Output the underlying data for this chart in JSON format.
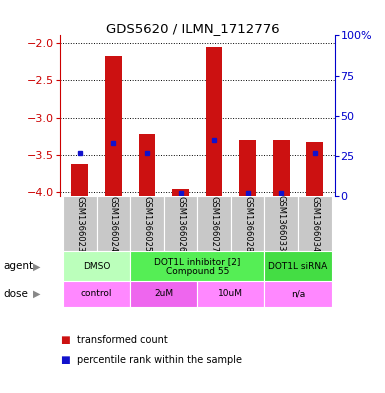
{
  "title": "GDS5620 / ILMN_1712776",
  "samples": [
    "GSM1366023",
    "GSM1366024",
    "GSM1366025",
    "GSM1366026",
    "GSM1366027",
    "GSM1366028",
    "GSM1366033",
    "GSM1366034"
  ],
  "red_values": [
    -3.62,
    -2.18,
    -3.22,
    -3.95,
    -2.06,
    -3.3,
    -3.3,
    -3.32
  ],
  "blue_pct": [
    27,
    33,
    27,
    2,
    35,
    2,
    2,
    27
  ],
  "ylim_left": [
    -4.05,
    -1.9
  ],
  "ylim_right": [
    0,
    100
  ],
  "yticks_left": [
    -4.0,
    -3.5,
    -3.0,
    -2.5,
    -2.0
  ],
  "yticks_right": [
    0,
    25,
    50,
    75,
    100
  ],
  "agent_groups": [
    {
      "label": "DMSO",
      "cols": [
        0,
        1
      ],
      "color": "#bbffbb"
    },
    {
      "label": "DOT1L inhibitor [2]\nCompound 55",
      "cols": [
        2,
        3,
        4,
        5
      ],
      "color": "#55ee55"
    },
    {
      "label": "DOT1L siRNA",
      "cols": [
        6,
        7
      ],
      "color": "#44dd44"
    }
  ],
  "dose_spans": [
    {
      "cols": [
        0,
        1
      ],
      "label": "control",
      "color": "#ff88ff"
    },
    {
      "cols": [
        2,
        3
      ],
      "label": "2uM",
      "color": "#ee66ee"
    },
    {
      "cols": [
        4,
        5
      ],
      "label": "10uM",
      "color": "#ff88ff"
    },
    {
      "cols": [
        6,
        7
      ],
      "label": "n/a",
      "color": "#ff88ff"
    }
  ],
  "bar_color": "#cc1111",
  "dot_color": "#1111cc",
  "bg_color": "#ffffff",
  "tick_color_left": "#cc0000",
  "tick_color_right": "#0000cc",
  "sample_bg": "#c8c8c8",
  "bar_width": 0.5
}
